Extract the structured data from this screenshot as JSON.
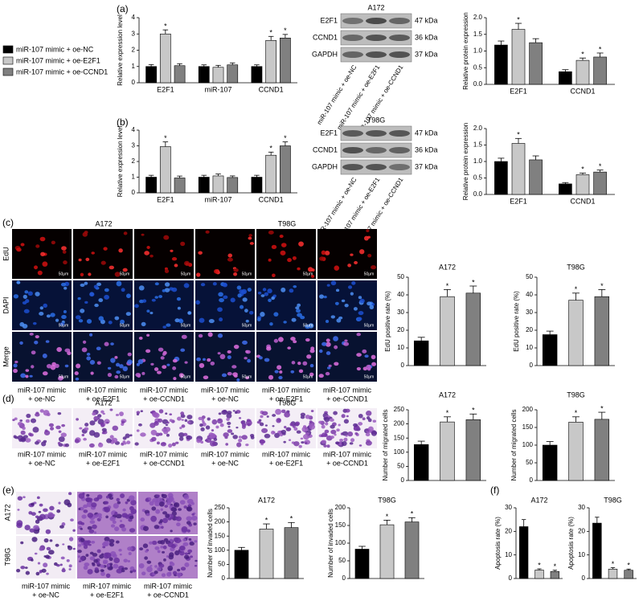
{
  "panel_labels": [
    "(a)",
    "(b)",
    "(c)",
    "(d)",
    "(e)",
    "(f)"
  ],
  "groups": [
    {
      "name": "miR-107 mimic + oe-NC",
      "color": "#000000"
    },
    {
      "name": "miR-107 mimic + oe-E2F1",
      "color": "#c8c8c8"
    },
    {
      "name": "miR-107 mimic + oe-CCND1",
      "color": "#808080"
    }
  ],
  "column_label_lines": [
    [
      "miR-107 mimic",
      "+ oe-NC"
    ],
    [
      "miR-107 mimic",
      "+ oe-E2F1"
    ],
    [
      "miR-107 mimic",
      "+ oe-CCND1"
    ]
  ],
  "blots": [
    {
      "title": "A172",
      "proteins": [
        "E2F1",
        "CCND1",
        "GAPDH"
      ],
      "sizes": [
        "47 kDa",
        "36 kDa",
        "37 kDa"
      ]
    },
    {
      "title": "T98G",
      "proteins": [
        "E2F1",
        "CCND1",
        "GAPDH"
      ],
      "sizes": [
        "47 kDa",
        "36 kDa",
        "37 kDa"
      ]
    }
  ],
  "edu_grid": {
    "cell_lines": [
      "A172",
      "T98G"
    ],
    "rows": [
      "EdU",
      "DAPI",
      "Merge"
    ],
    "scale": "50μm"
  },
  "transwell_grid": {
    "cell_lines": [
      "A172",
      "T98G"
    ]
  },
  "invasion_grid": {
    "rows": [
      "A172",
      "T98G"
    ]
  },
  "chart_data": [
    {
      "type": "bar",
      "y_label": "Relative expression level",
      "categories": [
        "E2F1",
        "miR-107",
        "CCND1"
      ],
      "ylim": [
        0,
        4
      ],
      "yticks": [
        0,
        1,
        2,
        3,
        4
      ],
      "series": [
        {
          "values": [
            1.0,
            1.0,
            1.0
          ],
          "errors": [
            0.12,
            0.1,
            0.1
          ],
          "significance": [
            null,
            null,
            null
          ]
        },
        {
          "values": [
            3.0,
            0.95,
            2.6
          ],
          "errors": [
            0.25,
            0.12,
            0.25
          ],
          "significance": [
            "*",
            null,
            "*"
          ]
        },
        {
          "values": [
            1.05,
            1.1,
            2.75
          ],
          "errors": [
            0.12,
            0.12,
            0.22
          ],
          "significance": [
            null,
            null,
            "*"
          ]
        }
      ]
    },
    {
      "type": "bar",
      "y_label": "Relative protein expression",
      "categories": [
        "E2F1",
        "CCND1"
      ],
      "ylim": [
        0,
        2
      ],
      "yticks": [
        {
          "value": 0,
          "label": "0.0"
        },
        {
          "value": 0.5,
          "label": "0.5"
        },
        {
          "value": 1,
          "label": "1.0"
        },
        {
          "value": 1.5,
          "label": "1.5"
        },
        {
          "value": 2,
          "label": "2.0"
        }
      ],
      "series": [
        {
          "values": [
            1.18,
            0.38
          ],
          "errors": [
            0.12,
            0.06
          ],
          "significance": [
            null,
            null
          ]
        },
        {
          "values": [
            1.65,
            0.72
          ],
          "errors": [
            0.18,
            0.07
          ],
          "significance": [
            "*",
            "*"
          ]
        },
        {
          "values": [
            1.25,
            0.82
          ],
          "errors": [
            0.12,
            0.12
          ],
          "significance": [
            null,
            "*"
          ]
        }
      ]
    },
    {
      "type": "bar",
      "y_label": "Relative expression level",
      "categories": [
        "E2F1",
        "miR-107",
        "CCND1"
      ],
      "ylim": [
        0,
        4
      ],
      "yticks": [
        0,
        1,
        2,
        3,
        4
      ],
      "series": [
        {
          "values": [
            1.0,
            1.0,
            1.0
          ],
          "errors": [
            0.12,
            0.12,
            0.12
          ],
          "significance": [
            null,
            null,
            null
          ]
        },
        {
          "values": [
            2.95,
            1.08,
            2.4
          ],
          "errors": [
            0.3,
            0.12,
            0.2
          ],
          "significance": [
            "*",
            null,
            "*"
          ]
        },
        {
          "values": [
            0.95,
            0.98,
            3.0
          ],
          "errors": [
            0.12,
            0.1,
            0.25
          ],
          "significance": [
            null,
            null,
            "*"
          ]
        }
      ]
    },
    {
      "type": "bar",
      "y_label": "Relative protein expression",
      "categories": [
        "E2F1",
        "CCND1"
      ],
      "ylim": [
        0,
        2
      ],
      "yticks": [
        {
          "value": 0,
          "label": "0.0"
        },
        {
          "value": 0.5,
          "label": "0.5"
        },
        {
          "value": 1,
          "label": "1.0"
        },
        {
          "value": 1.5,
          "label": "1.5"
        },
        {
          "value": 2,
          "label": "2.0"
        }
      ],
      "series": [
        {
          "values": [
            1.0,
            0.32
          ],
          "errors": [
            0.1,
            0.04
          ],
          "significance": [
            null,
            null
          ]
        },
        {
          "values": [
            1.55,
            0.6
          ],
          "errors": [
            0.15,
            0.05
          ],
          "significance": [
            "*",
            "*"
          ]
        },
        {
          "values": [
            1.05,
            0.68
          ],
          "errors": [
            0.12,
            0.06
          ],
          "significance": [
            null,
            "*"
          ]
        }
      ]
    },
    {
      "type": "bar",
      "title": "A172",
      "y_label": "EdU positive rate (%)",
      "ylim": [
        0,
        50
      ],
      "yticks": [
        0,
        10,
        20,
        30,
        40,
        50
      ],
      "series": [
        {
          "values": [
            14
          ],
          "errors": [
            2
          ],
          "significance": [
            null
          ]
        },
        {
          "values": [
            39
          ],
          "errors": [
            4
          ],
          "significance": [
            "*"
          ]
        },
        {
          "values": [
            41
          ],
          "errors": [
            4
          ],
          "significance": [
            "*"
          ]
        }
      ]
    },
    {
      "type": "bar",
      "title": "T98G",
      "y_label": "EdU positive rate (%)",
      "ylim": [
        0,
        50
      ],
      "yticks": [
        0,
        10,
        20,
        30,
        40,
        50
      ],
      "series": [
        {
          "values": [
            17.5
          ],
          "errors": [
            2
          ],
          "significance": [
            null
          ]
        },
        {
          "values": [
            37
          ],
          "errors": [
            4
          ],
          "significance": [
            "*"
          ]
        },
        {
          "values": [
            39
          ],
          "errors": [
            4
          ],
          "significance": [
            "*"
          ]
        }
      ]
    },
    {
      "type": "bar",
      "title": "A172",
      "y_label": "Number of migrated cells",
      "ylim": [
        0,
        250
      ],
      "yticks": [
        0,
        50,
        100,
        150,
        200,
        250
      ],
      "series": [
        {
          "values": [
            127
          ],
          "errors": [
            12
          ],
          "significance": [
            null
          ]
        },
        {
          "values": [
            207
          ],
          "errors": [
            18
          ],
          "significance": [
            "*"
          ]
        },
        {
          "values": [
            215
          ],
          "errors": [
            20
          ],
          "significance": [
            "*"
          ]
        }
      ]
    },
    {
      "type": "bar",
      "title": "T98G",
      "y_label": "Number of migrated cells",
      "ylim": [
        0,
        200
      ],
      "yticks": [
        0,
        50,
        100,
        150,
        200
      ],
      "series": [
        {
          "values": [
            100
          ],
          "errors": [
            10
          ],
          "significance": [
            null
          ]
        },
        {
          "values": [
            165
          ],
          "errors": [
            15
          ],
          "significance": [
            "*"
          ]
        },
        {
          "values": [
            173
          ],
          "errors": [
            20
          ],
          "significance": [
            "*"
          ]
        }
      ]
    },
    {
      "type": "bar",
      "title": "A172",
      "y_label": "Number of invaded cells",
      "ylim": [
        0,
        250
      ],
      "yticks": [
        0,
        50,
        100,
        150,
        200,
        250
      ],
      "series": [
        {
          "values": [
            100
          ],
          "errors": [
            10
          ],
          "significance": [
            null
          ]
        },
        {
          "values": [
            175
          ],
          "errors": [
            18
          ],
          "significance": [
            "*"
          ]
        },
        {
          "values": [
            180
          ],
          "errors": [
            18
          ],
          "significance": [
            "*"
          ]
        }
      ]
    },
    {
      "type": "bar",
      "title": "T98G",
      "y_label": "Number of invaded cells",
      "ylim": [
        0,
        200
      ],
      "yticks": [
        0,
        50,
        100,
        150,
        200
      ],
      "series": [
        {
          "values": [
            83
          ],
          "errors": [
            8
          ],
          "significance": [
            null
          ]
        },
        {
          "values": [
            152
          ],
          "errors": [
            13
          ],
          "significance": [
            "*"
          ]
        },
        {
          "values": [
            160
          ],
          "errors": [
            12
          ],
          "significance": [
            "*"
          ]
        }
      ]
    },
    {
      "type": "bar",
      "title": "A172",
      "y_label": "Apoptosis rate (%)",
      "ylim": [
        0,
        30
      ],
      "yticks": [
        0,
        10,
        20,
        30
      ],
      "series": [
        {
          "values": [
            22
          ],
          "errors": [
            3
          ],
          "significance": [
            null
          ]
        },
        {
          "values": [
            3.6
          ],
          "errors": [
            0.5
          ],
          "significance": [
            "*"
          ]
        },
        {
          "values": [
            3.0
          ],
          "errors": [
            0.5
          ],
          "significance": [
            "*"
          ]
        }
      ]
    },
    {
      "type": "bar",
      "title": "T98G",
      "y_label": "Apoptosis rate (%)",
      "ylim": [
        0,
        30
      ],
      "yticks": [
        0,
        10,
        20,
        30
      ],
      "series": [
        {
          "values": [
            23.5
          ],
          "errors": [
            2.5
          ],
          "significance": [
            null
          ]
        },
        {
          "values": [
            4
          ],
          "errors": [
            0.6
          ],
          "significance": [
            "*"
          ]
        },
        {
          "values": [
            3.5
          ],
          "errors": [
            0.5
          ],
          "significance": [
            "*"
          ]
        }
      ]
    }
  ]
}
